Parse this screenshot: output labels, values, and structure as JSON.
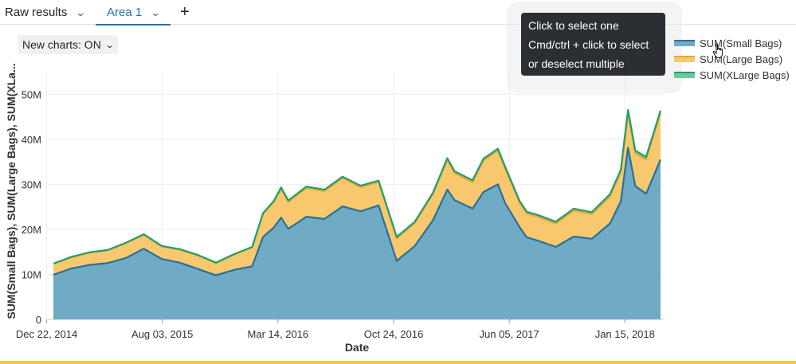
{
  "tabs": {
    "raw_results": "Raw results",
    "area": "Area 1",
    "chevron": "⌄",
    "add": "+"
  },
  "new_charts_toggle": "New charts: ON",
  "tooltip": {
    "line1": "Click to select one",
    "line2": "Cmd/ctrl + click to select",
    "line3": "or deselect multiple"
  },
  "colors": {
    "small": "#6fabc4",
    "small_line": "#2a6f99",
    "large": "#f8c86f",
    "large_line": "#e6a431",
    "xlarge": "#6ec79a",
    "xlarge_line": "#21a06a",
    "grid": "#ececec",
    "tab_active": "#2272b4"
  },
  "chart_data": {
    "type": "area",
    "stacked": true,
    "xlabel": "Date",
    "ylabel": "SUM(Small Bags), SUM(Large Bags), SUM(XLa...",
    "ylim": [
      0,
      55
    ],
    "yticks": [
      0,
      10,
      20,
      30,
      40,
      50
    ],
    "ytick_labels": [
      "0",
      "10M",
      "20M",
      "30M",
      "40M",
      "50M"
    ],
    "xticks": [
      "2014-12-22",
      "2015-08-03",
      "2016-03-14",
      "2016-10-24",
      "2017-06-05",
      "2018-01-15"
    ],
    "xtick_labels": [
      "Dec 22, 2014",
      "Aug 03, 2015",
      "Mar 14, 2016",
      "Oct 24, 2016",
      "Jun 05, 2017",
      "Jan 15, 2018"
    ],
    "x_start": "2015-01-04",
    "x_end": "2018-03-25",
    "x": [
      "2015-01-04",
      "2015-02-08",
      "2015-03-15",
      "2015-04-19",
      "2015-05-24",
      "2015-06-28",
      "2015-08-02",
      "2015-09-06",
      "2015-10-11",
      "2015-11-15",
      "2015-12-20",
      "2016-01-24",
      "2016-02-14",
      "2016-03-06",
      "2016-03-20",
      "2016-04-03",
      "2016-05-08",
      "2016-06-12",
      "2016-07-17",
      "2016-08-21",
      "2016-09-25",
      "2016-10-30",
      "2016-12-04",
      "2017-01-08",
      "2017-02-05",
      "2017-02-19",
      "2017-03-26",
      "2017-04-16",
      "2017-05-14",
      "2017-05-28",
      "2017-06-25",
      "2017-07-09",
      "2017-07-30",
      "2017-09-03",
      "2017-10-08",
      "2017-11-12",
      "2017-12-17",
      "2018-01-07",
      "2018-01-21",
      "2018-02-04",
      "2018-02-25",
      "2018-03-25"
    ],
    "series": [
      {
        "name": "SUM(Small Bags)",
        "values": [
          9.9,
          11.3,
          12.1,
          12.5,
          13.6,
          15.7,
          13.4,
          12.6,
          11.2,
          9.8,
          11.0,
          11.8,
          18.3,
          20.4,
          22.6,
          20.1,
          22.8,
          22.3,
          25.1,
          24.0,
          25.3,
          13.0,
          16.3,
          22.0,
          28.8,
          26.5,
          24.6,
          28.3,
          30.0,
          25.8,
          20.5,
          18.2,
          17.5,
          16.1,
          18.4,
          17.9,
          21.3,
          26.2,
          38.1,
          29.6,
          27.9,
          35.5
        ]
      },
      {
        "name": "SUM(Large Bags)",
        "values": [
          2.4,
          2.5,
          2.7,
          2.8,
          3.3,
          3.1,
          2.8,
          2.9,
          3.0,
          2.7,
          3.4,
          4.2,
          5.1,
          5.7,
          6.4,
          6.0,
          6.4,
          6.2,
          6.3,
          5.4,
          5.2,
          5.0,
          5.1,
          5.8,
          6.6,
          6.0,
          5.9,
          7.0,
          7.5,
          7.7,
          5.4,
          5.3,
          5.3,
          5.2,
          5.8,
          5.5,
          6.0,
          6.5,
          7.8,
          7.3,
          7.6,
          10.3
        ]
      },
      {
        "name": "SUM(XLarge Bags)",
        "values": [
          0.1,
          0.1,
          0.1,
          0.1,
          0.1,
          0.1,
          0.1,
          0.1,
          0.1,
          0.1,
          0.1,
          0.1,
          0.2,
          0.2,
          0.3,
          0.3,
          0.3,
          0.3,
          0.3,
          0.3,
          0.3,
          0.3,
          0.3,
          0.3,
          0.4,
          0.4,
          0.4,
          0.4,
          0.4,
          0.4,
          0.4,
          0.4,
          0.4,
          0.4,
          0.4,
          0.4,
          0.5,
          0.5,
          0.6,
          0.6,
          0.6,
          0.6
        ]
      }
    ],
    "legend_position": "right",
    "grid": true
  }
}
